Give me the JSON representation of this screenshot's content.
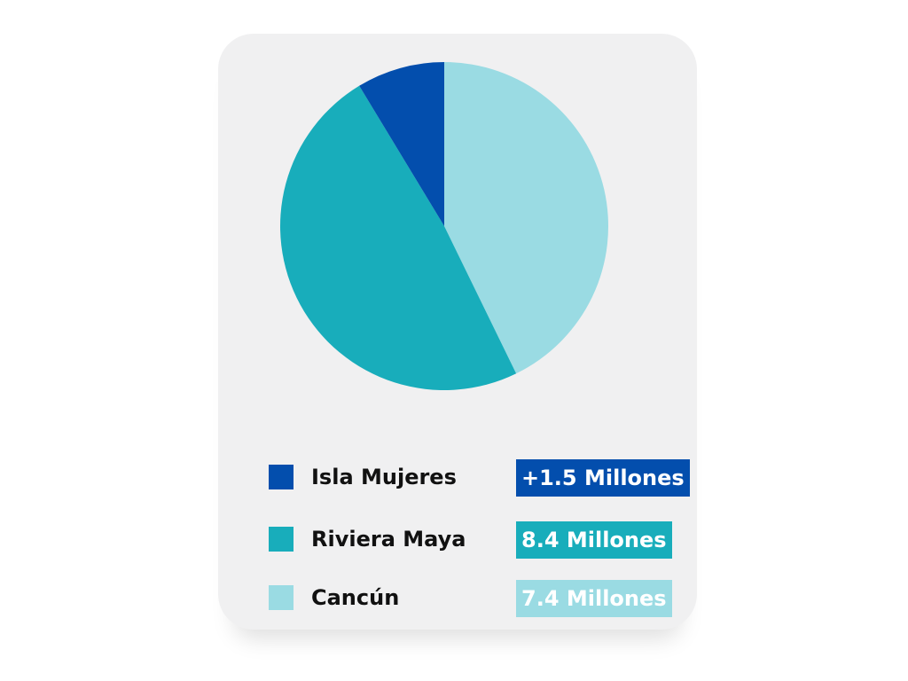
{
  "chart_data": {
    "type": "pie",
    "series": [
      {
        "name": "Isla Mujeres",
        "value": 1.5,
        "value_label": "+1.5 Millones",
        "color": "#034ead"
      },
      {
        "name": "Riviera Maya",
        "value": 8.4,
        "value_label": "8.4 Millones",
        "color": "#18adbb"
      },
      {
        "name": "Cancún",
        "value": 7.4,
        "value_label": "7.4 Millones",
        "color": "#9adbe3"
      }
    ],
    "slice_order_clockwise_from_top": [
      "Cancún",
      "Riviera Maya",
      "Isla Mujeres"
    ],
    "legend_position": "bottom",
    "title": ""
  }
}
